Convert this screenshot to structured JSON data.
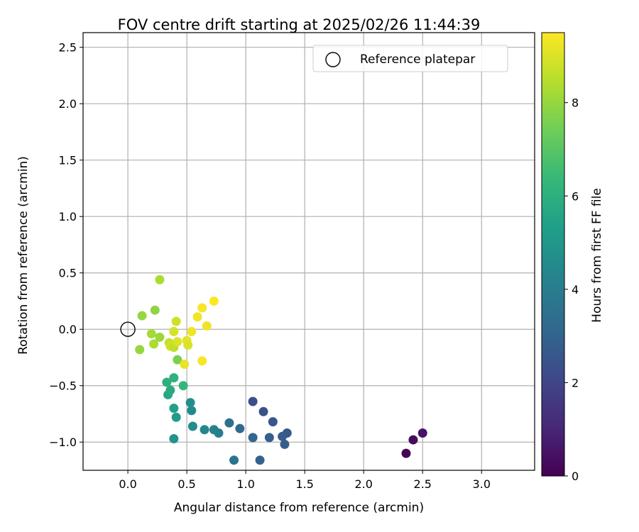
{
  "chart_data": {
    "type": "scatter",
    "title": "FOV centre drift starting at 2025/02/26 11:44:39",
    "xlabel": "Angular distance from reference (arcmin)",
    "ylabel": "Rotation from reference (arcmin)",
    "xlim": [
      -0.38,
      3.45
    ],
    "ylim": [
      -1.25,
      2.63
    ],
    "xticks": [
      "0.0",
      "0.5",
      "1.0",
      "1.5",
      "2.0",
      "2.5",
      "3.0"
    ],
    "xtick_values": [
      0.0,
      0.5,
      1.0,
      1.5,
      2.0,
      2.5,
      3.0
    ],
    "yticks": [
      "−1.0",
      "−0.5",
      "0.0",
      "0.5",
      "1.0",
      "1.5",
      "2.0",
      "2.5"
    ],
    "ytick_values": [
      -1.0,
      -0.5,
      0.0,
      0.5,
      1.0,
      1.5,
      2.0,
      2.5
    ],
    "grid": true,
    "legend_position": "top-right",
    "legend": [
      {
        "label": "Reference platepar",
        "marker": "open-circle",
        "x": 0.0,
        "y": 0.0
      }
    ],
    "colormap": "viridis",
    "colorbar": {
      "label": "Hours from first FF file",
      "range": [
        0,
        9.5
      ],
      "ticks": [
        "0",
        "2",
        "4",
        "6",
        "8"
      ],
      "tick_values": [
        0,
        2,
        4,
        6,
        8
      ]
    },
    "points": [
      {
        "x": 2.36,
        "y": -1.1,
        "c": 0.1
      },
      {
        "x": 2.42,
        "y": -0.98,
        "c": 0.3
      },
      {
        "x": 2.5,
        "y": -0.92,
        "c": 0.5
      },
      {
        "x": 1.06,
        "y": -0.64,
        "c": 2.3
      },
      {
        "x": 1.15,
        "y": -0.73,
        "c": 2.4
      },
      {
        "x": 1.23,
        "y": -0.82,
        "c": 2.5
      },
      {
        "x": 1.35,
        "y": -0.92,
        "c": 2.6
      },
      {
        "x": 1.31,
        "y": -0.95,
        "c": 2.7
      },
      {
        "x": 1.33,
        "y": -1.02,
        "c": 2.8
      },
      {
        "x": 1.2,
        "y": -0.96,
        "c": 2.9
      },
      {
        "x": 1.06,
        "y": -0.96,
        "c": 3.1
      },
      {
        "x": 0.95,
        "y": -0.88,
        "c": 3.3
      },
      {
        "x": 0.86,
        "y": -0.83,
        "c": 3.5
      },
      {
        "x": 0.9,
        "y": -1.16,
        "c": 3.7
      },
      {
        "x": 1.12,
        "y": -1.16,
        "c": 3.0
      },
      {
        "x": 0.77,
        "y": -0.92,
        "c": 4.0
      },
      {
        "x": 0.73,
        "y": -0.89,
        "c": 4.2
      },
      {
        "x": 0.65,
        "y": -0.89,
        "c": 4.4
      },
      {
        "x": 0.55,
        "y": -0.86,
        "c": 4.6
      },
      {
        "x": 0.54,
        "y": -0.72,
        "c": 4.5
      },
      {
        "x": 0.53,
        "y": -0.65,
        "c": 4.7
      },
      {
        "x": 0.39,
        "y": -0.97,
        "c": 4.9
      },
      {
        "x": 0.41,
        "y": -0.78,
        "c": 5.2
      },
      {
        "x": 0.39,
        "y": -0.7,
        "c": 5.4
      },
      {
        "x": 0.34,
        "y": -0.58,
        "c": 5.6
      },
      {
        "x": 0.36,
        "y": -0.54,
        "c": 5.8
      },
      {
        "x": 0.33,
        "y": -0.47,
        "c": 6.0
      },
      {
        "x": 0.39,
        "y": -0.43,
        "c": 6.1
      },
      {
        "x": 0.47,
        "y": -0.5,
        "c": 6.3
      },
      {
        "x": 0.42,
        "y": -0.27,
        "c": 7.6
      },
      {
        "x": 0.1,
        "y": -0.18,
        "c": 8.0
      },
      {
        "x": 0.22,
        "y": -0.13,
        "c": 8.3
      },
      {
        "x": 0.27,
        "y": -0.07,
        "c": 8.1
      },
      {
        "x": 0.2,
        "y": -0.04,
        "c": 8.2
      },
      {
        "x": 0.12,
        "y": 0.12,
        "c": 8.0
      },
      {
        "x": 0.23,
        "y": 0.17,
        "c": 7.9
      },
      {
        "x": 0.27,
        "y": 0.44,
        "c": 8.3
      },
      {
        "x": 0.35,
        "y": -0.12,
        "c": 8.7
      },
      {
        "x": 0.36,
        "y": -0.15,
        "c": 8.8
      },
      {
        "x": 0.39,
        "y": -0.16,
        "c": 8.6
      },
      {
        "x": 0.42,
        "y": -0.11,
        "c": 9.0
      },
      {
        "x": 0.39,
        "y": -0.02,
        "c": 8.9
      },
      {
        "x": 0.41,
        "y": 0.07,
        "c": 8.8
      },
      {
        "x": 0.5,
        "y": -0.1,
        "c": 9.1
      },
      {
        "x": 0.51,
        "y": -0.14,
        "c": 9.0
      },
      {
        "x": 0.48,
        "y": -0.31,
        "c": 9.2
      },
      {
        "x": 0.54,
        "y": -0.02,
        "c": 9.3
      },
      {
        "x": 0.59,
        "y": 0.11,
        "c": 9.3
      },
      {
        "x": 0.63,
        "y": 0.19,
        "c": 9.4
      },
      {
        "x": 0.63,
        "y": -0.28,
        "c": 9.4
      },
      {
        "x": 0.67,
        "y": 0.03,
        "c": 9.3
      },
      {
        "x": 0.73,
        "y": 0.25,
        "c": 9.5
      }
    ]
  }
}
